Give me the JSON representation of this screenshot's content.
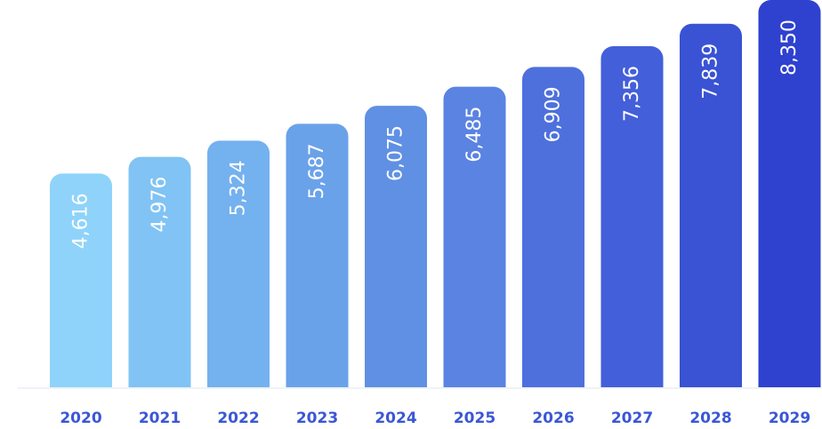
{
  "chart_data": {
    "type": "bar",
    "categories": [
      "2020",
      "2021",
      "2022",
      "2023",
      "2024",
      "2025",
      "2026",
      "2027",
      "2028",
      "2029"
    ],
    "values": [
      4616,
      4976,
      5324,
      5687,
      6075,
      6485,
      6909,
      7356,
      7839,
      8350
    ],
    "value_labels": [
      "4,616",
      "4,976",
      "5,324",
      "5,687",
      "6,075",
      "6,485",
      "6,909",
      "7,356",
      "7,839",
      "8,350"
    ],
    "colors": [
      "#8fd3fa",
      "#80c3f4",
      "#74b1ef",
      "#6aa2ea",
      "#5f90e4",
      "#5a83e2",
      "#4e70dd",
      "#435fd9",
      "#3a52d4",
      "#2f41cf"
    ],
    "label_color": "#3b57d6",
    "title": "",
    "xlabel": "",
    "ylabel": "",
    "ylim": [
      0,
      8350
    ],
    "grid": false,
    "legend": "none"
  }
}
